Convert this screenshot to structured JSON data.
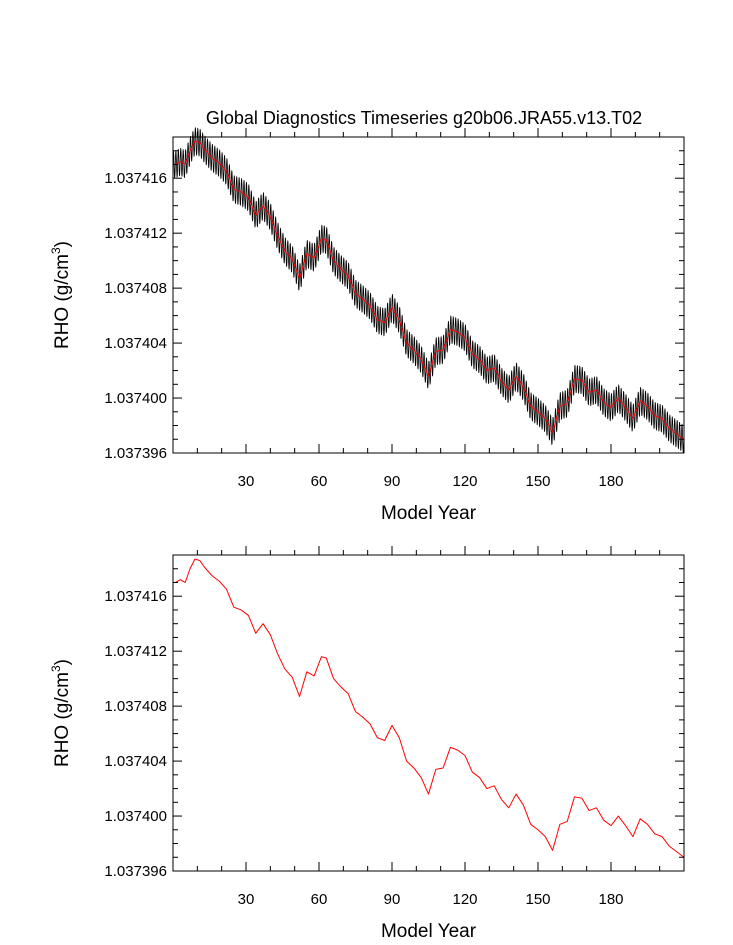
{
  "figure": {
    "title": "Global Diagnostics Timeseries g20b06.JRA55.v13.T02"
  },
  "colors": {
    "monthly_line": "#000000",
    "annual_line": "#ff0000",
    "axes": "#000000",
    "background": "#ffffff"
  },
  "chart_data": [
    {
      "type": "line",
      "title": "Global Diagnostics Timeseries g20b06.JRA55.v13.T02",
      "xlabel": "Model Year",
      "ylabel": "RHO (g/cm",
      "ylabel_superscript": "3",
      "ylabel_suffix": ")",
      "xlim": [
        0,
        210
      ],
      "ylim": [
        1.037396,
        1.037419
      ],
      "xticks": [
        30,
        60,
        90,
        120,
        150,
        180
      ],
      "yticks": [
        1.037396,
        1.0374,
        1.037404,
        1.037408,
        1.037412,
        1.037416
      ],
      "ytick_labels": [
        "1.037396",
        "1.037400",
        "1.037404",
        "1.037408",
        "1.037412",
        "1.037416"
      ],
      "grid": false,
      "series": [
        {
          "kind": "monthly",
          "seasonal_amplitude": 1e-06,
          "color": "#000000"
        },
        {
          "kind": "annual",
          "color": "#ff0000"
        }
      ]
    },
    {
      "type": "line",
      "xlabel": "Model Year",
      "ylabel": "RHO (g/cm",
      "ylabel_superscript": "3",
      "ylabel_suffix": ")",
      "xlim": [
        0,
        210
      ],
      "ylim": [
        1.037396,
        1.037419
      ],
      "xticks": [
        30,
        60,
        90,
        120,
        150,
        180
      ],
      "yticks": [
        1.037396,
        1.0374,
        1.037404,
        1.037408,
        1.037412,
        1.037416
      ],
      "ytick_labels": [
        "1.037396",
        "1.037400",
        "1.037404",
        "1.037408",
        "1.037412",
        "1.037416"
      ],
      "grid": false,
      "series": [
        {
          "kind": "annual",
          "color": "#ff0000"
        }
      ]
    }
  ],
  "annual_mean": {
    "x": [
      1,
      3,
      5,
      7,
      9,
      11,
      13,
      16,
      19,
      22,
      25,
      28,
      31,
      34,
      37,
      40,
      43,
      46,
      49,
      52,
      55,
      58,
      61,
      63,
      66,
      69,
      72,
      75,
      78,
      81,
      84,
      87,
      90,
      93,
      96,
      99,
      102,
      105,
      108,
      111,
      114,
      117,
      120,
      123,
      126,
      129,
      132,
      135,
      138,
      141,
      144,
      147,
      150,
      153,
      156,
      159,
      162,
      165,
      168,
      171,
      174,
      177,
      180,
      183,
      186,
      189,
      192,
      195,
      198,
      201,
      204,
      207,
      210
    ],
    "y": [
      1.037417,
      1.0374172,
      1.037417,
      1.037418,
      1.0374187,
      1.0374186,
      1.0374181,
      1.0374175,
      1.0374171,
      1.0374165,
      1.0374152,
      1.037415,
      1.0374146,
      1.0374133,
      1.037414,
      1.0374132,
      1.0374118,
      1.0374107,
      1.0374101,
      1.0374087,
      1.0374105,
      1.0374102,
      1.0374116,
      1.0374115,
      1.03741,
      1.0374094,
      1.0374089,
      1.0374076,
      1.0374072,
      1.0374067,
      1.0374057,
      1.0374055,
      1.0374066,
      1.0374057,
      1.037404,
      1.0374035,
      1.0374028,
      1.0374016,
      1.0374034,
      1.0374035,
      1.037405,
      1.0374048,
      1.0374044,
      1.0374032,
      1.0374028,
      1.037402,
      1.0374022,
      1.0374012,
      1.0374006,
      1.0374016,
      1.0374008,
      1.0373994,
      1.037399,
      1.0373985,
      1.0373975,
      1.0373994,
      1.0373996,
      1.0374014,
      1.0374013,
      1.0374004,
      1.0374006,
      1.0373997,
      1.0373993,
      1.0374,
      1.0373993,
      1.0373985,
      1.0373998,
      1.0373994,
      1.0373987,
      1.0373985,
      1.0373978,
      1.0373974,
      1.037397
    ]
  }
}
